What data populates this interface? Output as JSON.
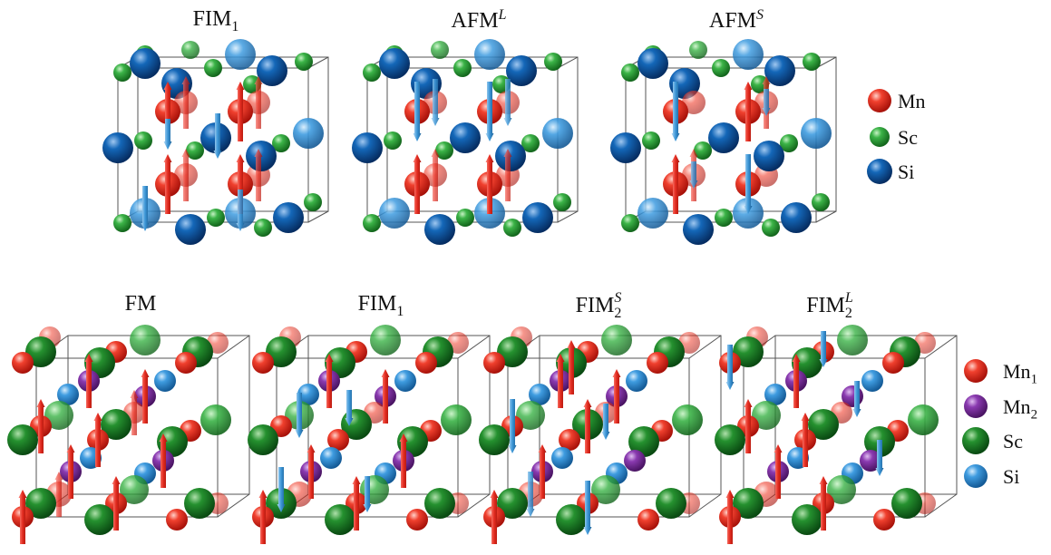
{
  "top_row": {
    "panels": [
      {
        "base": "FIM",
        "sub": "1",
        "sup": ""
      },
      {
        "base": "AFM",
        "sub": "",
        "sup": "L"
      },
      {
        "base": "AFM",
        "sub": "",
        "sup": "S"
      }
    ],
    "legend": [
      {
        "label": "Mn",
        "sub": "",
        "color": "#e8281e"
      },
      {
        "label": "Sc",
        "sub": "",
        "color": "#2fa339"
      },
      {
        "label": "Si",
        "sub": "",
        "color": "#0c5aa3"
      }
    ]
  },
  "bottom_row": {
    "panels": [
      {
        "base": "FM",
        "sub": "",
        "sup": ""
      },
      {
        "base": "FIM",
        "sub": "1",
        "sup": ""
      },
      {
        "base": "FIM",
        "sub": "2",
        "sup": "S"
      },
      {
        "base": "FIM",
        "sub": "2",
        "sup": "L"
      }
    ],
    "legend": [
      {
        "label": "Mn",
        "sub": "1",
        "color": "#e8281e"
      },
      {
        "label": "Mn",
        "sub": "2",
        "color": "#7a2f9b"
      },
      {
        "label": "Sc",
        "sub": "",
        "color": "#1f8a2a"
      },
      {
        "label": "Si",
        "sub": "",
        "color": "#2f8fd6"
      }
    ]
  },
  "colors": {
    "spin_up": "#e32b1f",
    "spin_down": "#3d97d8",
    "cell_edge": "#555555"
  }
}
